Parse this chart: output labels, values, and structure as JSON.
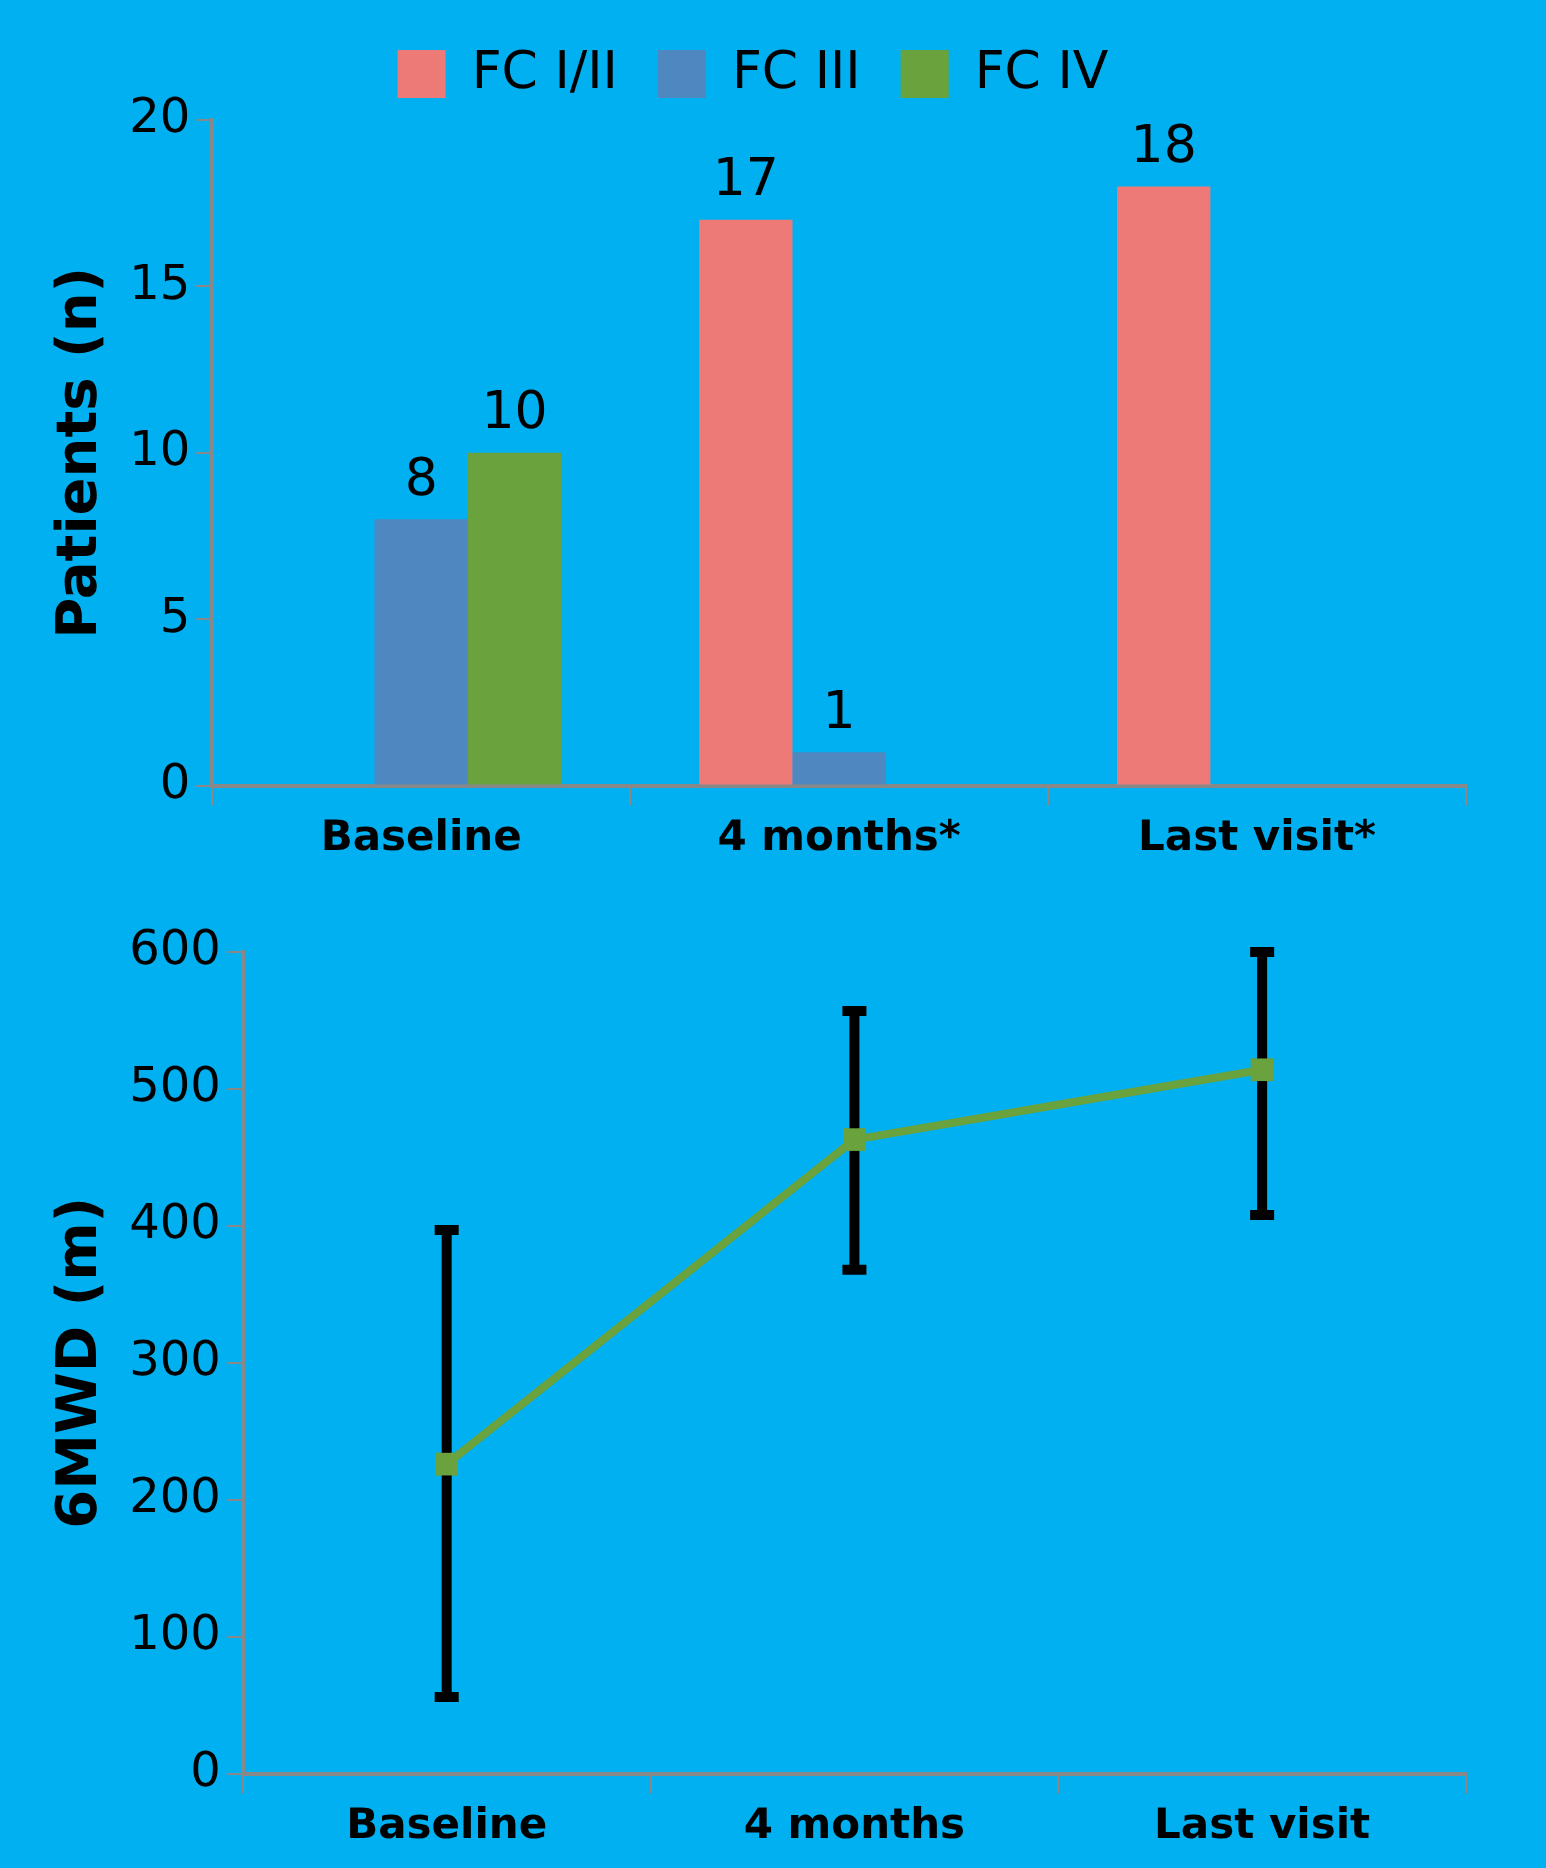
{
  "chart_data": [
    {
      "type": "bar",
      "ylabel": "Patients (n)",
      "categories": [
        "Baseline",
        "4 months*",
        "Last visit*"
      ],
      "series": [
        {
          "name": "FC I/II",
          "color": "#ee7a78",
          "values": [
            0,
            17,
            18
          ],
          "value_labels": [
            null,
            "17",
            "18"
          ]
        },
        {
          "name": "FC III",
          "color": "#4f87c0",
          "values": [
            8,
            1,
            0
          ],
          "value_labels": [
            "8",
            "1",
            null
          ]
        },
        {
          "name": "FC IV",
          "color": "#6aa23e",
          "values": [
            10,
            0,
            0
          ],
          "value_labels": [
            "10",
            null,
            null
          ]
        }
      ],
      "ylim": [
        0,
        20
      ],
      "yticks": [
        0,
        5,
        10,
        15,
        20
      ],
      "grid": false,
      "legend": "top"
    },
    {
      "type": "line",
      "ylabel": "6MWD (m)",
      "categories": [
        "Baseline",
        "4 months",
        "Last visit"
      ],
      "series": [
        {
          "color": "#6aa23e",
          "values": [
            226,
            463,
            514
          ],
          "errors": [
            [
              56,
              397
            ],
            [
              368,
              557
            ],
            [
              408,
              600
            ]
          ]
        }
      ],
      "ylim": [
        0,
        600
      ],
      "yticks": [
        0,
        100,
        200,
        300,
        400,
        500,
        600
      ],
      "grid": false,
      "legend": false,
      "marker": "square",
      "line_style": "solid"
    }
  ]
}
